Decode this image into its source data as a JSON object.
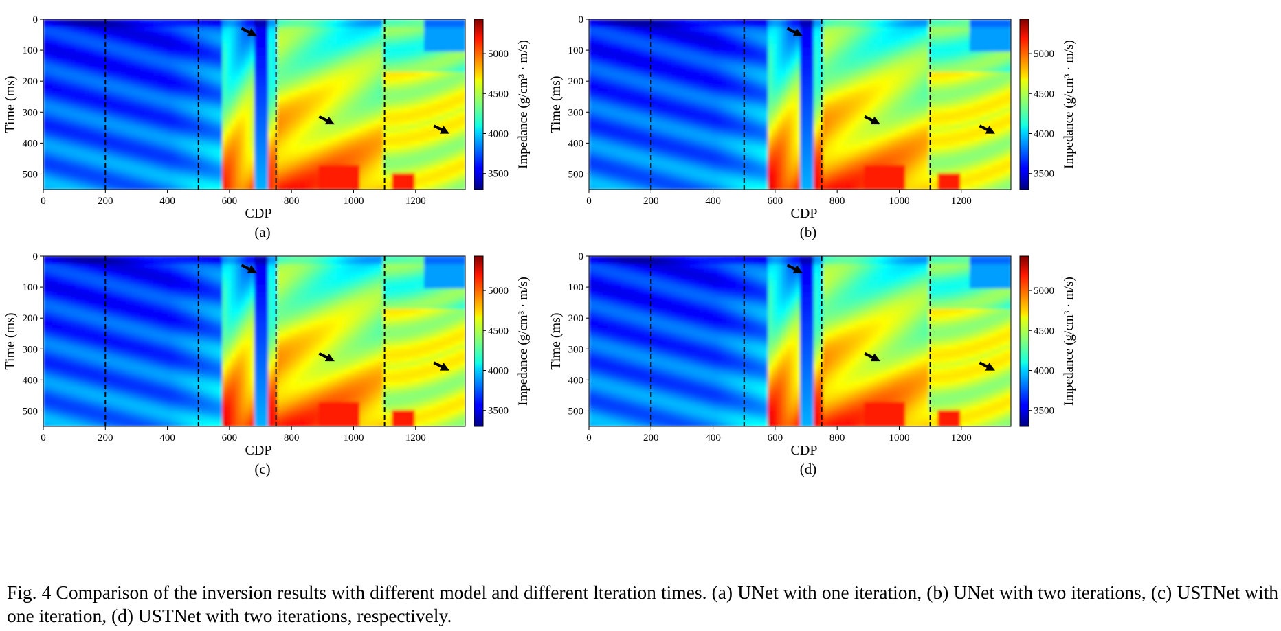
{
  "figure": {
    "number_label": "Fig. 4",
    "caption": "Comparison of the inversion results with different model and different lteration times. (a) UNet with one iteration, (b) UNet with two iterations, (c) USTNet with one iteration, (d) USTNet with two iterations, respectively."
  },
  "colormap": "jet",
  "colors": {
    "low": "#00007f",
    "mid": "#7fff7f",
    "high": "#7f0000",
    "guide_line": "#000000"
  },
  "chart_data": [
    {
      "type": "heatmap",
      "label": "(a)",
      "xlabel": "CDP",
      "ylabel": "Time (ms)",
      "colorbar_label": "Impedance (g/cm³ · m/s)",
      "xlim": [
        0,
        1360
      ],
      "ylim": [
        550,
        0
      ],
      "xticks": [
        "0",
        "200",
        "400",
        "600",
        "800",
        "1000",
        "1200"
      ],
      "yticks": [
        "0",
        "100",
        "200",
        "300",
        "400",
        "500"
      ],
      "colorbar_range": [
        3300,
        5430
      ],
      "colorbar_ticks": [
        "3500",
        "4000",
        "4500",
        "5000"
      ],
      "dashed_lines_cdp": [
        200,
        500,
        750,
        1100
      ],
      "arrows": [
        {
          "cdp": 670,
          "time": 45
        },
        {
          "cdp": 920,
          "time": 330
        },
        {
          "cdp": 1290,
          "time": 360
        }
      ]
    },
    {
      "type": "heatmap",
      "label": "(b)",
      "xlabel": "CDP",
      "ylabel": "Time (ms)",
      "colorbar_label": "Impedance (g/cm³ · m/s)",
      "xlim": [
        0,
        1360
      ],
      "ylim": [
        550,
        0
      ],
      "xticks": [
        "0",
        "200",
        "400",
        "600",
        "800",
        "1000",
        "1200"
      ],
      "yticks": [
        "0",
        "100",
        "200",
        "300",
        "400",
        "500"
      ],
      "colorbar_range": [
        3300,
        5430
      ],
      "colorbar_ticks": [
        "3500",
        "4000",
        "4500",
        "5000"
      ],
      "dashed_lines_cdp": [
        200,
        500,
        750,
        1100
      ],
      "arrows": [
        {
          "cdp": 670,
          "time": 45
        },
        {
          "cdp": 920,
          "time": 330
        },
        {
          "cdp": 1290,
          "time": 360
        }
      ]
    },
    {
      "type": "heatmap",
      "label": "(c)",
      "xlabel": "CDP",
      "ylabel": "Time (ms)",
      "colorbar_label": "Impedance (g/cm³ · m/s)",
      "xlim": [
        0,
        1360
      ],
      "ylim": [
        550,
        0
      ],
      "xticks": [
        "0",
        "200",
        "400",
        "600",
        "800",
        "1000",
        "1200"
      ],
      "yticks": [
        "0",
        "100",
        "200",
        "300",
        "400",
        "500"
      ],
      "colorbar_range": [
        3300,
        5430
      ],
      "colorbar_ticks": [
        "3500",
        "4000",
        "4500",
        "5000"
      ],
      "dashed_lines_cdp": [
        200,
        500,
        750,
        1100
      ],
      "arrows": [
        {
          "cdp": 670,
          "time": 45
        },
        {
          "cdp": 920,
          "time": 330
        },
        {
          "cdp": 1290,
          "time": 360
        }
      ]
    },
    {
      "type": "heatmap",
      "label": "(d)",
      "xlabel": "CDP",
      "ylabel": "Time (ms)",
      "colorbar_label": "Impedance (g/cm³ · m/s)",
      "xlim": [
        0,
        1360
      ],
      "ylim": [
        550,
        0
      ],
      "xticks": [
        "0",
        "200",
        "400",
        "600",
        "800",
        "1000",
        "1200"
      ],
      "yticks": [
        "0",
        "100",
        "200",
        "300",
        "400",
        "500"
      ],
      "colorbar_range": [
        3300,
        5430
      ],
      "colorbar_ticks": [
        "3500",
        "4000",
        "4500",
        "5000"
      ],
      "dashed_lines_cdp": [
        200,
        500,
        750,
        1100
      ],
      "arrows": [
        {
          "cdp": 670,
          "time": 45
        },
        {
          "cdp": 920,
          "time": 330
        },
        {
          "cdp": 1290,
          "time": 360
        }
      ]
    }
  ]
}
